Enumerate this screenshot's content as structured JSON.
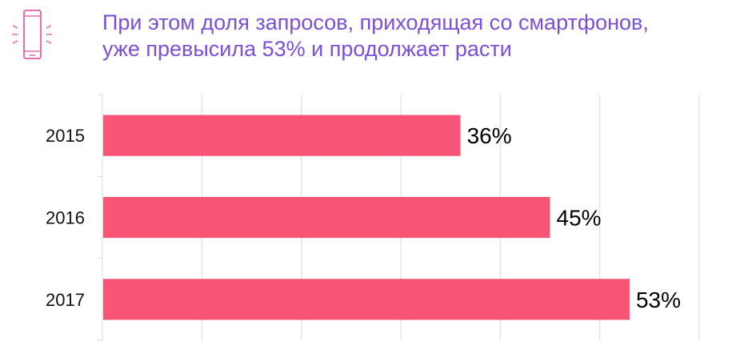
{
  "header": {
    "icon": "smartphone-icon",
    "title_lines": [
      "При этом доля запросов, приходящая со смартфонов,",
      "уже превысила 53% и продолжает расти"
    ]
  },
  "colors": {
    "bar": "#f85476",
    "title": "#7b4fd8",
    "icon": "#e56fb2",
    "grid": "#d9d9d9"
  },
  "chart_data": {
    "type": "bar",
    "orientation": "horizontal",
    "categories": [
      "2015",
      "2016",
      "2017"
    ],
    "values": [
      36,
      45,
      53
    ],
    "value_labels": [
      "36%",
      "45%",
      "53%"
    ],
    "unit": "%",
    "xlim": [
      0,
      60
    ],
    "grid": true
  }
}
